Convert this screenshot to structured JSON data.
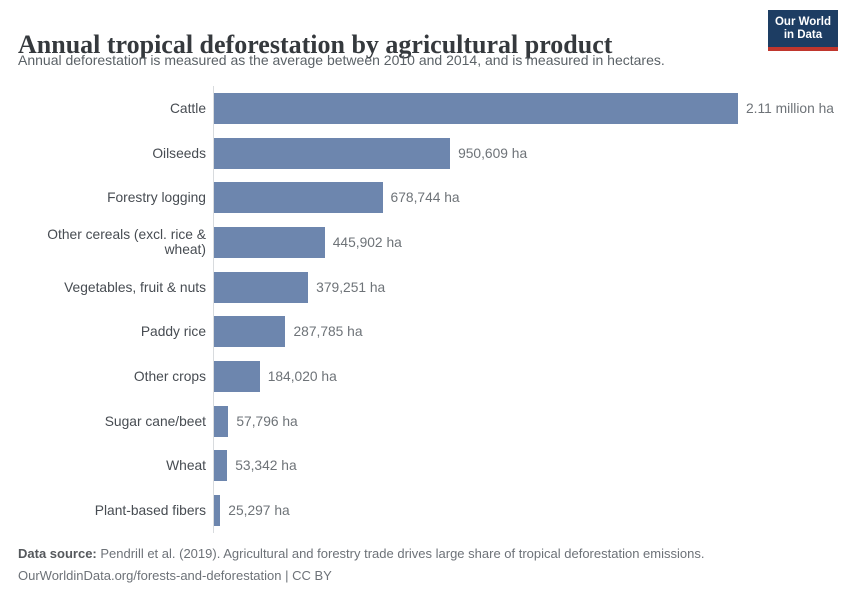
{
  "header": {
    "title": "Annual tropical deforestation by agricultural product",
    "subtitle": "Annual deforestation is measured as the average between 2010 and 2014, and is measured in hectares.",
    "logo": {
      "line1": "Our World",
      "line2": "in Data"
    }
  },
  "chart_data": {
    "type": "bar",
    "orientation": "horizontal",
    "title": "Annual tropical deforestation by agricultural product",
    "unit": "hectares",
    "xlim": [
      0,
      2110000
    ],
    "grid": false,
    "bar_color": "#6d86ae",
    "categories": [
      "Cattle",
      "Oilseeds",
      "Forestry logging",
      "Other cereals (excl. rice & wheat)",
      "Vegetables, fruit & nuts",
      "Paddy rice",
      "Other crops",
      "Sugar cane/beet",
      "Wheat",
      "Plant-based fibers"
    ],
    "values": [
      2110000,
      950609,
      678744,
      445902,
      379251,
      287785,
      184020,
      57796,
      53342,
      25297
    ],
    "value_labels": [
      "2.11 million ha",
      "950,609 ha",
      "678,744 ha",
      "445,902 ha",
      "379,251 ha",
      "287,785 ha",
      "184,020 ha",
      "57,796 ha",
      "53,342 ha",
      "25,297 ha"
    ]
  },
  "footer": {
    "datasource_label": "Data source:",
    "datasource_text": " Pendrill et al. (2019). Agricultural and forestry trade drives large share of tropical deforestation emissions.",
    "url_line": "OurWorldinData.org/forests-and-deforestation | CC BY"
  },
  "colors": {
    "bar": "#6d86ae",
    "axis_line": "#d8dbde",
    "logo_background": "#1d3d63",
    "logo_accent": "#c0362d",
    "title_text": "#35393d",
    "subtitle_text": "#5b6267",
    "value_text": "#6e7378"
  }
}
